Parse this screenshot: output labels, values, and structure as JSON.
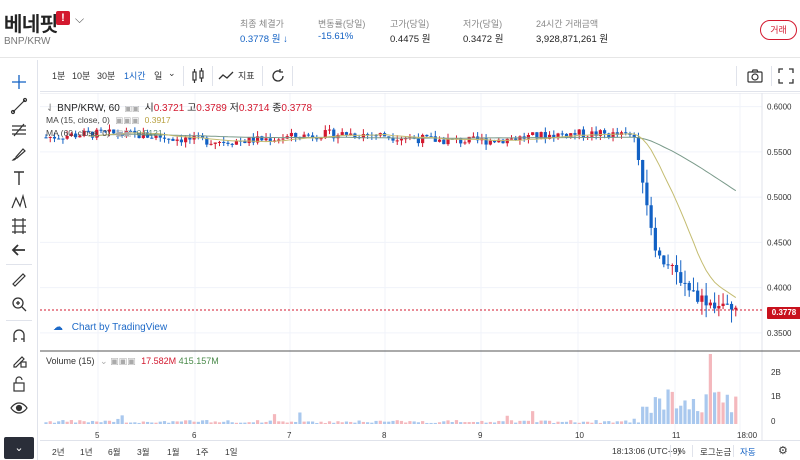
{
  "header": {
    "coin_name": "베네핏",
    "warning_badge": "!",
    "pair": "BNP/KRW",
    "stats": [
      {
        "label": "최종 체결가",
        "value": "0.3778 원 ↓"
      },
      {
        "label": "변동률(당일)",
        "value": "-15.61%"
      },
      {
        "label": "고가(당일)",
        "value": "0.4475 원"
      },
      {
        "label": "저가(당일)",
        "value": "0.3472 원"
      },
      {
        "label": "24시간 거래금액",
        "value": "3,928,871,261 원"
      }
    ],
    "trade_button": "거래"
  },
  "toolbar": {
    "intervals": [
      "1분",
      "10분",
      "30분",
      "1시간",
      "일"
    ],
    "selected_interval": "1시간",
    "indicators_label": "지표"
  },
  "legend": {
    "symbol": "BNP/KRW, 60",
    "open_label": "시",
    "open": "0.3721",
    "high_label": "고",
    "high": "0.3789",
    "low_label": "저",
    "low": "0.3714",
    "close_label": "종",
    "close": "0.3778",
    "ma1_label": "MA (15, close, 0)",
    "ma1_value": "0.3917",
    "ma2_label": "MA (60, close, 0)",
    "ma2_value": "0.5121"
  },
  "watermark": "Chart by TradingView",
  "price_tag": "0.3778",
  "volume_legend": {
    "label": "Volume (15)",
    "v1": "17.582M",
    "v2": "415.157M"
  },
  "bottom_bar": {
    "ranges": [
      "2년",
      "1년",
      "6월",
      "3월",
      "1월",
      "1주",
      "1일"
    ],
    "time": "18:13:06 (UTC+9)",
    "percent": "%",
    "log": "로그눈금",
    "auto": "자동"
  },
  "colors": {
    "up": "#d3192f",
    "down": "#1261c4",
    "ma15": "#b8b070",
    "ma60": "#7a9a8a",
    "accent": "#1261c4"
  },
  "chart_data": {
    "type": "candlestick",
    "title": "BNP/KRW, 60",
    "interval": "60 minutes",
    "y_axis_ticks": [
      0.6,
      0.55,
      0.5,
      0.45,
      0.4,
      0.35
    ],
    "y_axis_tick_labels": [
      "0.6000",
      "0.5500",
      "0.5000",
      "0.4500",
      "0.4000",
      "0.3500"
    ],
    "x_axis_tick_labels": [
      "5",
      "6",
      "7",
      "8",
      "9",
      "10",
      "11",
      "18:00"
    ],
    "ylim": [
      0.33,
      0.615
    ],
    "last_price": 0.3778,
    "approx_series": [
      {
        "day": "5",
        "close": 0.565
      },
      {
        "day": "6",
        "close": 0.568
      },
      {
        "day": "7",
        "close": 0.571
      },
      {
        "day": "8",
        "close": 0.57
      },
      {
        "day": "9",
        "close": 0.569
      },
      {
        "day": "10",
        "close": 0.568
      },
      {
        "day": "11 early",
        "close": 0.455
      },
      {
        "day": "11",
        "close": 0.42
      },
      {
        "day": "11 18:00",
        "close": 0.3778
      }
    ],
    "ma15_end": 0.3917,
    "ma60_end": 0.5121,
    "volume_axis_labels": [
      "2B",
      "1B",
      "0"
    ],
    "volume_last": "17.582M",
    "volume_ma": "415.157M"
  }
}
